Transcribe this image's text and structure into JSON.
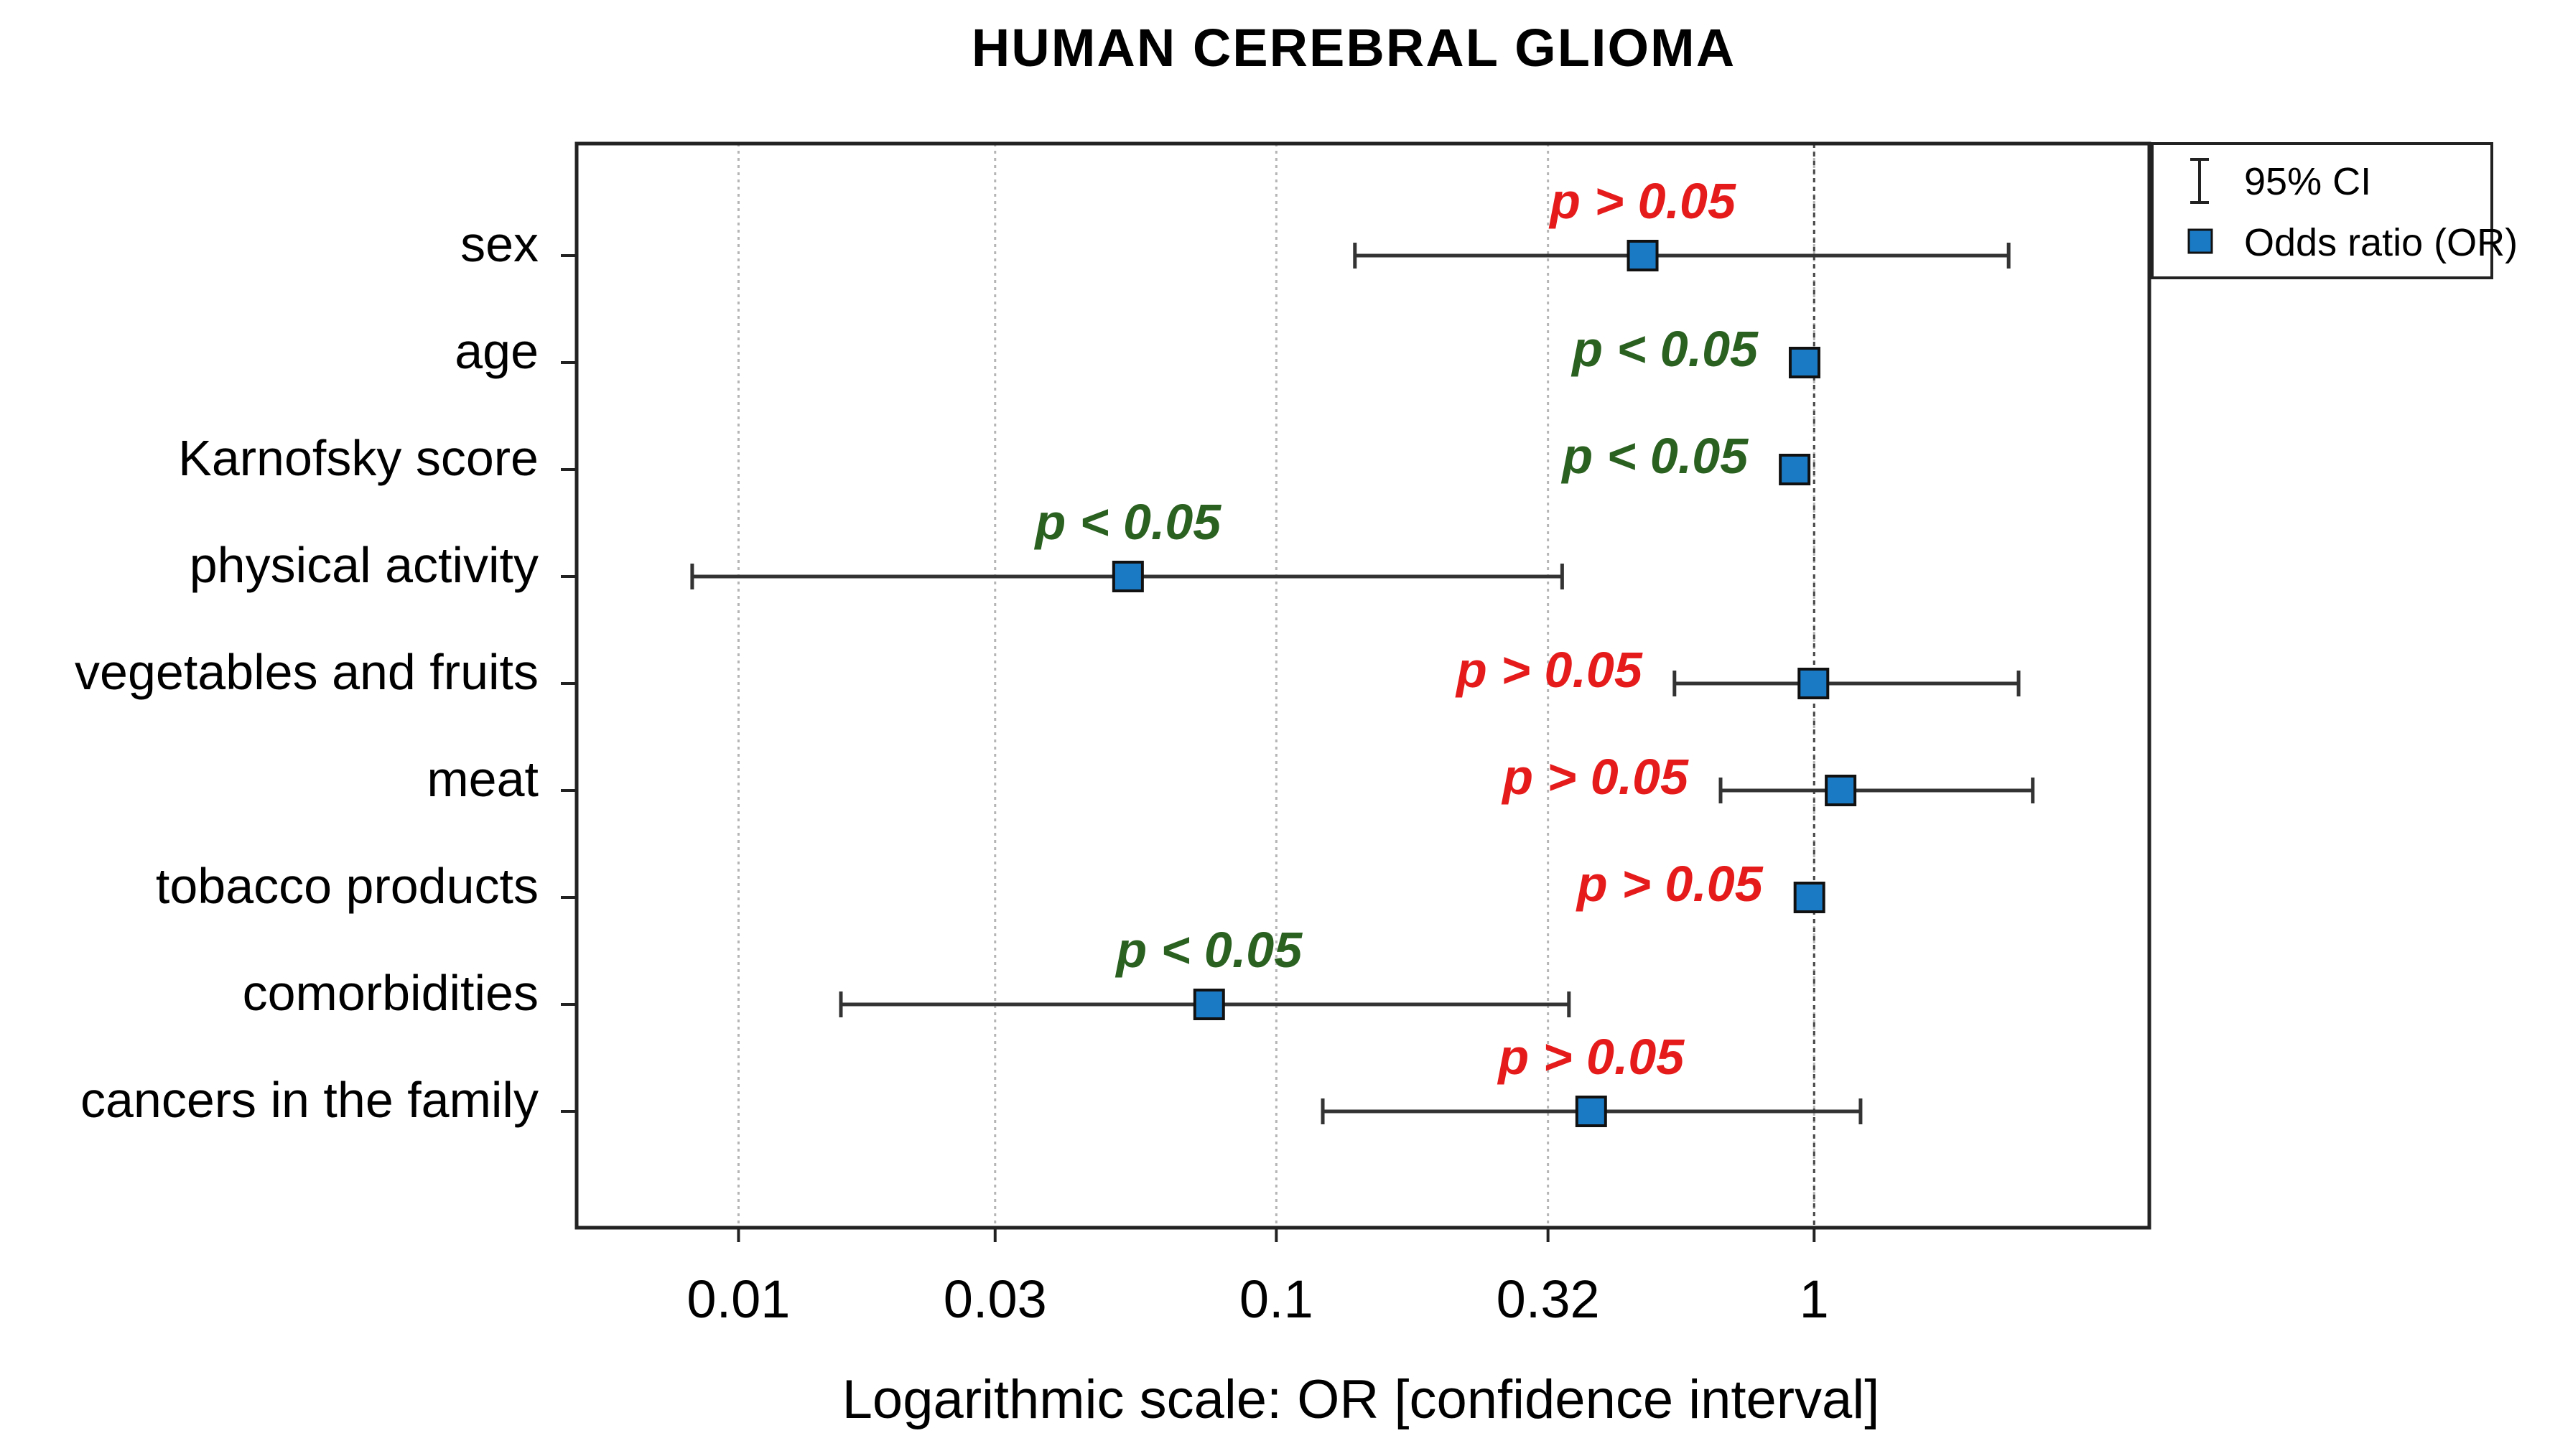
{
  "chart_data": {
    "type": "forest",
    "title": "HUMAN  CEREBRAL  GLIOMA",
    "xlabel": "Logarithmic scale: OR [confidence interval]",
    "x_scale": "log",
    "xlim": [
      0.005,
      4.2
    ],
    "xticks": [
      0.01,
      0.03,
      0.1,
      0.32,
      1
    ],
    "xtick_labels": [
      "0.01",
      "0.03",
      "0.1",
      "0.32",
      "1"
    ],
    "grid": "vertical dotted",
    "reference_line": 1,
    "legend": {
      "position": "top-right",
      "items": [
        {
          "label": "95% CI",
          "marker": "errorbar"
        },
        {
          "label": "Odds ratio (OR)",
          "marker": "square"
        }
      ]
    },
    "colors": {
      "marker": "#1b7ac4",
      "significant": "#2a6020",
      "not_significant": "#e51b1b",
      "line": "#333333"
    },
    "rows": [
      {
        "label": "sex",
        "or": 0.48,
        "ci": [
          0.14,
          2.3
        ],
        "p_label": "p > 0.05",
        "significant": false
      },
      {
        "label": "age",
        "or": 0.96,
        "ci": [
          0.93,
          0.99
        ],
        "p_label": "p < 0.05",
        "significant": true
      },
      {
        "label": "Karnofsky score",
        "or": 0.92,
        "ci": [
          0.88,
          0.96
        ],
        "p_label": "p < 0.05",
        "significant": true
      },
      {
        "label": "physical activity",
        "or": 0.053,
        "ci": [
          0.0082,
          0.34
        ],
        "p_label": "p < 0.05",
        "significant": true
      },
      {
        "label": "vegetables and fruits",
        "or": 0.997,
        "ci": [
          0.55,
          2.4
        ],
        "p_label": "p > 0.05",
        "significant": false
      },
      {
        "label": "meat",
        "or": 1.12,
        "ci": [
          0.67,
          2.55
        ],
        "p_label": "p > 0.05",
        "significant": false
      },
      {
        "label": "tobacco products",
        "or": 0.98,
        "ci": [
          0.955,
          1.0
        ],
        "p_label": "p > 0.05",
        "significant": false
      },
      {
        "label": "comorbidities",
        "or": 0.075,
        "ci": [
          0.0155,
          0.35
        ],
        "p_label": "p < 0.05",
        "significant": true
      },
      {
        "label": "cancers in the family",
        "or": 0.385,
        "ci": [
          0.122,
          1.22
        ],
        "p_label": "p > 0.05",
        "significant": false
      }
    ]
  }
}
